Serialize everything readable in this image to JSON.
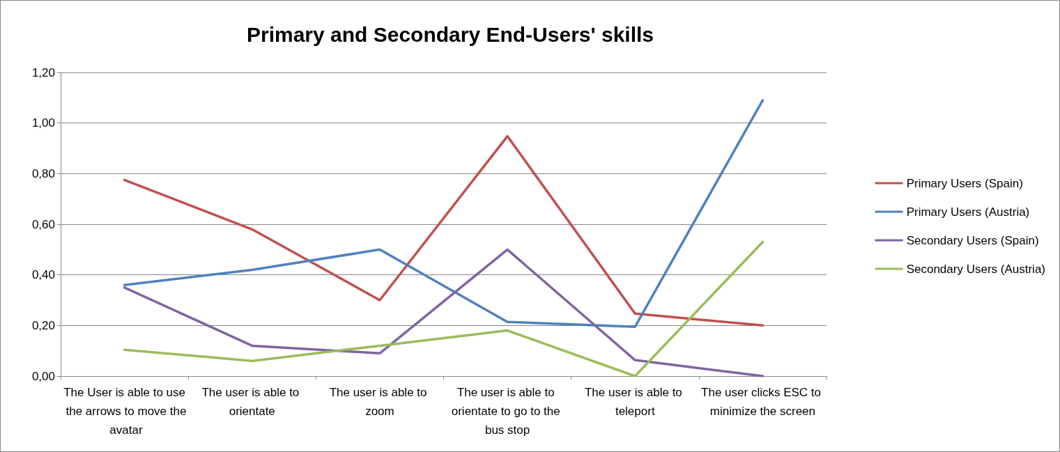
{
  "chart_data": {
    "type": "line",
    "title": "Primary and Secondary End-Users' skills",
    "categories": [
      "The User is able to use the arrows to move the avatar",
      "The user is able to orientate",
      "The user is able to zoom",
      "The user is able to orientate to go to the bus stop",
      "The user is able to teleport",
      "The user clicks ESC to minimize the screen"
    ],
    "series": [
      {
        "name": "Primary Users (Spain)",
        "color": "#c0504d",
        "values": [
          0.775,
          0.58,
          0.3,
          0.948,
          0.247,
          0.2
        ]
      },
      {
        "name": "Primary Users (Austria)",
        "color": "#4f81bd",
        "values": [
          0.36,
          0.42,
          0.5,
          0.214,
          0.195,
          1.09
        ]
      },
      {
        "name": "Secondary Users (Spain)",
        "color": "#8064a2",
        "values": [
          0.35,
          0.12,
          0.09,
          0.5,
          0.063,
          0
        ]
      },
      {
        "name": "Secondary Users (Austria)",
        "color": "#9bbb59",
        "values": [
          0.104,
          0.06,
          0.12,
          0.18,
          0,
          0.53
        ]
      }
    ],
    "ylim": [
      0,
      1.2
    ],
    "yticks": [
      {
        "value": 0,
        "label": "0,00"
      },
      {
        "value": 0.2,
        "label": "0,20"
      },
      {
        "value": 0.4,
        "label": "0,40"
      },
      {
        "value": 0.6,
        "label": "0,60"
      },
      {
        "value": 0.8,
        "label": "0,80"
      },
      {
        "value": 1,
        "label": "1,00"
      },
      {
        "value": 1.2,
        "label": "1,20"
      }
    ],
    "grid": "y",
    "legend": "right",
    "marker": "none",
    "line_style": "solid"
  }
}
